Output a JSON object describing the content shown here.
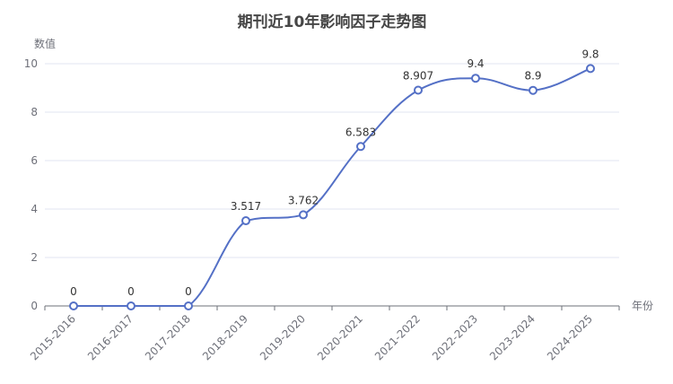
{
  "chart_data": {
    "type": "line",
    "title": "期刊近10年影响因子走势图",
    "xlabel": "年份",
    "ylabel": "数值",
    "categories": [
      "2015-2016",
      "2016-2017",
      "2017-2018",
      "2018-2019",
      "2019-2020",
      "2020-2021",
      "2021-2022",
      "2022-2023",
      "2023-2024",
      "2024-2025"
    ],
    "series": [
      {
        "values": [
          0,
          0,
          0,
          3.517,
          3.762,
          6.583,
          8.907,
          9.4,
          8.9,
          9.8
        ]
      }
    ],
    "data_labels": [
      "0",
      "0",
      "0",
      "3.517",
      "3.762",
      "6.583",
      "8.907",
      "9.4",
      "8.9",
      "9.8"
    ],
    "ylim": [
      0,
      10
    ],
    "yticks": [
      "0",
      "2",
      "4",
      "6",
      "8",
      "10"
    ],
    "grid": true,
    "smooth": true,
    "colors": {
      "line": "#5470c6",
      "marker_fill": "#ffffff",
      "grid": "#e0e6f1",
      "axis": "#6e7079"
    }
  }
}
